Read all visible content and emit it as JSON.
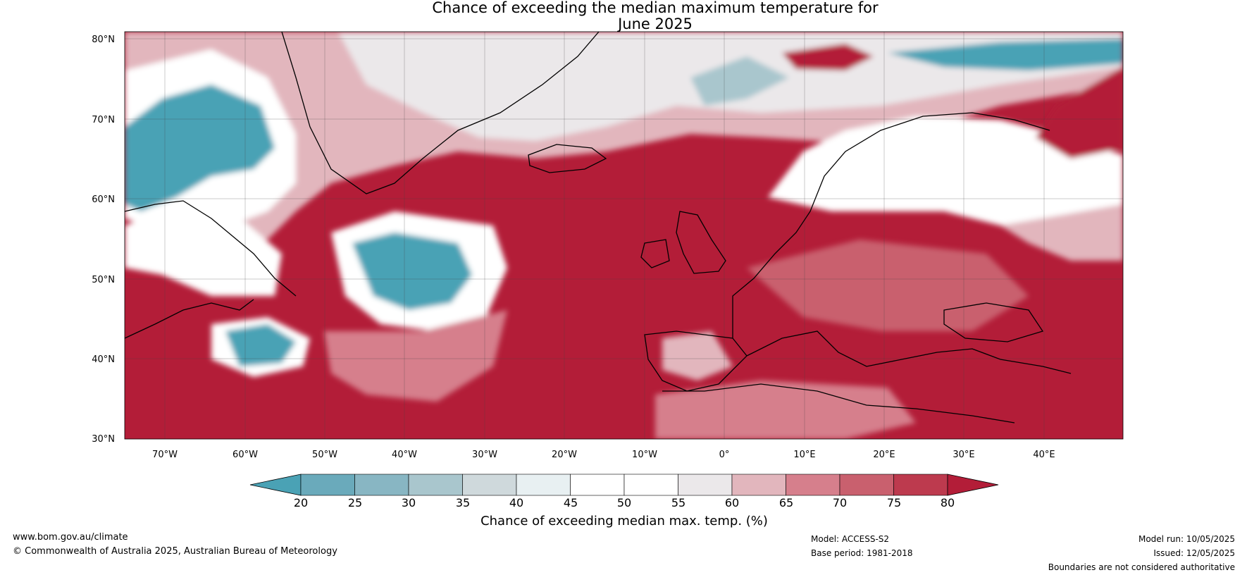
{
  "title_line1": "Chance of exceeding the median maximum temperature for",
  "title_line2": "June 2025",
  "lat_labels": [
    "80°N",
    "70°N",
    "60°N",
    "50°N",
    "40°N",
    "30°N"
  ],
  "lon_labels": [
    "70°W",
    "60°W",
    "50°W",
    "40°W",
    "30°W",
    "20°W",
    "10°W",
    "0°",
    "10°E",
    "20°E",
    "30°E",
    "40°E"
  ],
  "colorbar": {
    "ticks": [
      "20",
      "25",
      "30",
      "35",
      "40",
      "45",
      "50",
      "55",
      "60",
      "65",
      "70",
      "75",
      "80"
    ],
    "label": "Chance of exceeding median max. temp. (%)",
    "colors": [
      "#4aa2b5",
      "#6aaabb",
      "#88b6c3",
      "#a9c6cd",
      "#cfd9dc",
      "#e8f0f2",
      "#ffffff",
      "#ffffff",
      "#ebe8ea",
      "#e2b6bd",
      "#d67f8c",
      "#c9606e",
      "#bd3a4e",
      "#b31d38"
    ],
    "under_color": "#4aa2b5",
    "over_color": "#b31d38"
  },
  "palette": {
    "ocean_red": "#b31d38",
    "red_mid": "#c9606e",
    "pink": "#e2b6bd",
    "pale": "#ebe8ea",
    "white": "#ffffff",
    "teal": "#4aa2b5",
    "teal_light": "#a9c6cd"
  },
  "footer": {
    "website": "www.bom.gov.au/climate",
    "copyright": "© Commonwealth of Australia 2025, Australian Bureau of Meteorology",
    "model": "Model: ACCESS-S2",
    "base_period": "Base period: 1981-2018",
    "model_run": "Model run: 10/05/2025",
    "issued": "Issued: 12/05/2025",
    "disclaimer": "Boundaries are not considered authoritative"
  }
}
